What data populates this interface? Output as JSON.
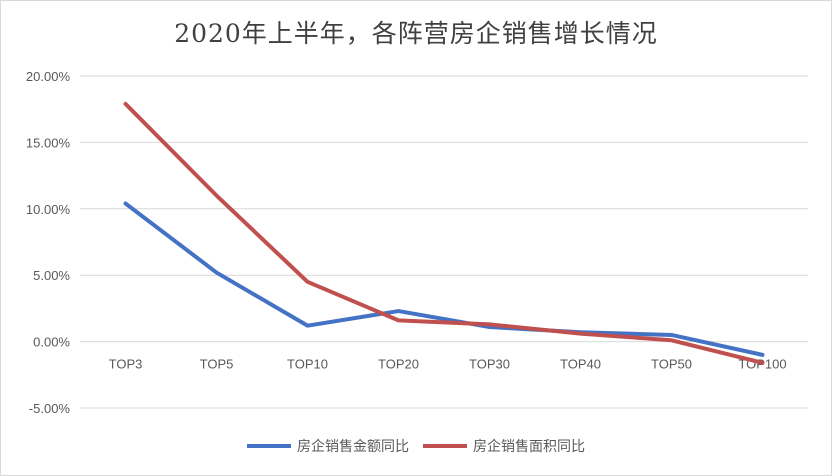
{
  "chart_data": {
    "type": "line",
    "title": "2020年上半年，各阵营房企销售增长情况",
    "categories": [
      "TOP3",
      "TOP5",
      "TOP10",
      "TOP20",
      "TOP30",
      "TOP40",
      "TOP50",
      "TOP100"
    ],
    "series": [
      {
        "name": "房企销售金额同比",
        "color": "#4472C4",
        "values": [
          0.104,
          0.052,
          0.012,
          0.023,
          0.011,
          0.007,
          0.005,
          -0.01
        ]
      },
      {
        "name": "房企销售面积同比",
        "color": "#C0504D",
        "values": [
          0.179,
          0.11,
          0.045,
          0.016,
          0.013,
          0.006,
          0.001,
          -0.016
        ]
      }
    ],
    "y_ticks": [
      "20.00%",
      "15.00%",
      "10.00%",
      "5.00%",
      "0.00%",
      "-5.00%"
    ],
    "ylim": [
      -0.05,
      0.2
    ],
    "grid": true,
    "legend_position": "bottom"
  }
}
